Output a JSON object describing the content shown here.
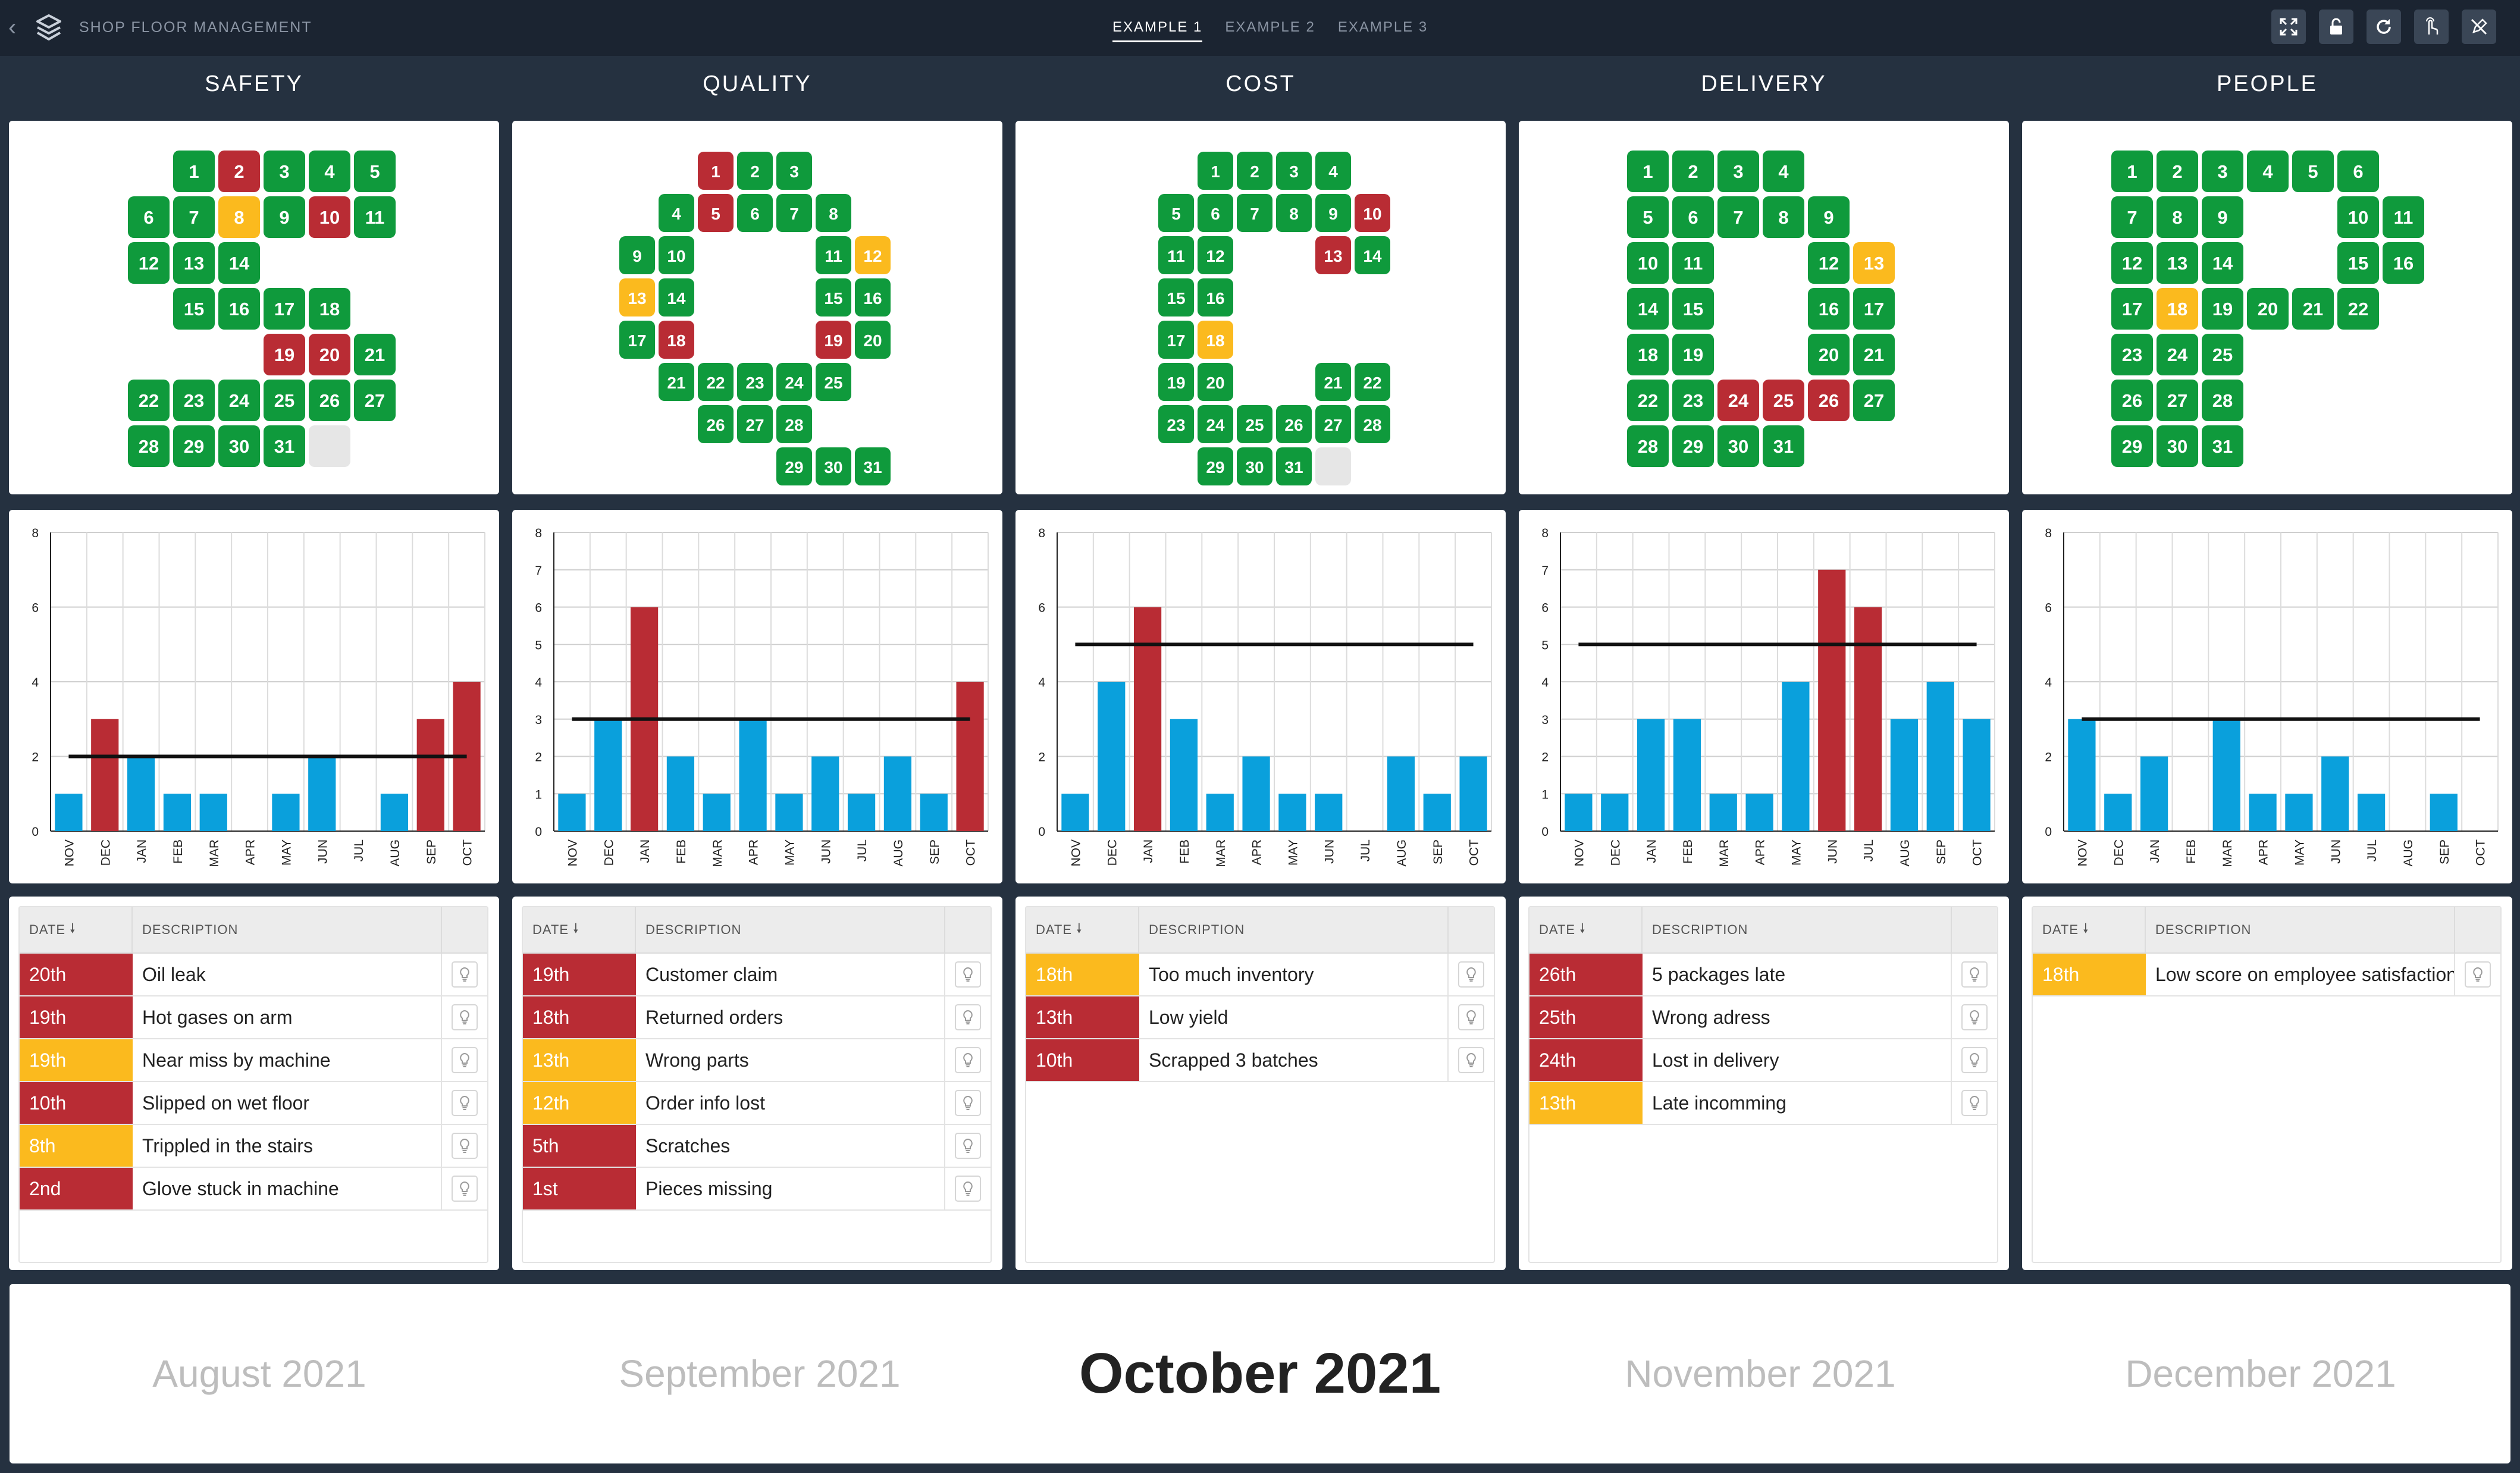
{
  "app": {
    "back_label": "‹",
    "title": "SHOP FLOOR MANAGEMENT",
    "logo": "layers-logo-icon"
  },
  "tabs": [
    {
      "label": "EXAMPLE 1",
      "active": true
    },
    {
      "label": "EXAMPLE 2",
      "active": false
    },
    {
      "label": "EXAMPLE 3",
      "active": false
    }
  ],
  "tools": [
    {
      "icon": "fullscreen-icon"
    },
    {
      "icon": "unlock-icon"
    },
    {
      "icon": "refresh-icon"
    },
    {
      "icon": "touch-icon"
    },
    {
      "icon": "edit-off-icon"
    }
  ],
  "colors": {
    "green": "#0f9a3c",
    "red": "#b92c34",
    "yellow": "#fbba1e",
    "grey": "#e6e6e6",
    "blue": "#0aa0dc",
    "target": "#111111"
  },
  "columns": [
    {
      "title": "SAFETY",
      "letter": "S",
      "days": {
        "2": "red",
        "8": "yellow",
        "10": "red",
        "19": "red",
        "20": "red"
      },
      "chart_data": {
        "type": "bar",
        "categories": [
          "NOV",
          "DEC",
          "JAN",
          "FEB",
          "MAR",
          "APR",
          "MAY",
          "JUN",
          "JUL",
          "AUG",
          "SEP",
          "OCT"
        ],
        "values": [
          1,
          3,
          2,
          1,
          1,
          0,
          1,
          2,
          0,
          1,
          3,
          4
        ],
        "status": [
          "blue",
          "red",
          "blue",
          "blue",
          "blue",
          "blue",
          "blue",
          "blue",
          "blue",
          "blue",
          "red",
          "red"
        ],
        "target": 2,
        "ylim": [
          0,
          8
        ],
        "yticks": [
          0,
          2,
          4,
          6,
          8
        ]
      },
      "table": {
        "header_date": "DATE",
        "header_desc": "DESCRIPTION",
        "rows": [
          {
            "date": "20th",
            "desc": "Oil leak",
            "status": "red"
          },
          {
            "date": "19th",
            "desc": "Hot gases on arm",
            "status": "red"
          },
          {
            "date": "19th",
            "desc": "Near miss by machine",
            "status": "yellow"
          },
          {
            "date": "10th",
            "desc": "Slipped on wet floor",
            "status": "red"
          },
          {
            "date": "8th",
            "desc": "Trippled in the stairs",
            "status": "yellow"
          },
          {
            "date": "2nd",
            "desc": "Glove stuck in machine",
            "status": "red"
          }
        ]
      }
    },
    {
      "title": "QUALITY",
      "letter": "Q",
      "days": {
        "1": "red",
        "5": "red",
        "12": "yellow",
        "13": "yellow",
        "18": "red",
        "19": "red"
      },
      "chart_data": {
        "type": "bar",
        "categories": [
          "NOV",
          "DEC",
          "JAN",
          "FEB",
          "MAR",
          "APR",
          "MAY",
          "JUN",
          "JUL",
          "AUG",
          "SEP",
          "OCT"
        ],
        "values": [
          1,
          3,
          6,
          2,
          1,
          3,
          1,
          2,
          1,
          2,
          1,
          4
        ],
        "status": [
          "blue",
          "blue",
          "red",
          "blue",
          "blue",
          "blue",
          "blue",
          "blue",
          "blue",
          "blue",
          "blue",
          "red"
        ],
        "target": 3,
        "ylim": [
          0,
          8
        ],
        "yticks": [
          0,
          1,
          2,
          3,
          4,
          5,
          6,
          7,
          8
        ]
      },
      "table": {
        "header_date": "DATE",
        "header_desc": "DESCRIPTION",
        "rows": [
          {
            "date": "19th",
            "desc": "Customer claim",
            "status": "red"
          },
          {
            "date": "18th",
            "desc": "Returned orders",
            "status": "red"
          },
          {
            "date": "13th",
            "desc": "Wrong parts",
            "status": "yellow"
          },
          {
            "date": "12th",
            "desc": "Order info lost",
            "status": "yellow"
          },
          {
            "date": "5th",
            "desc": "Scratches",
            "status": "red"
          },
          {
            "date": "1st",
            "desc": "Pieces missing",
            "status": "red"
          }
        ]
      }
    },
    {
      "title": "COST",
      "letter": "C",
      "days": {
        "10": "red",
        "13": "red",
        "18": "yellow"
      },
      "chart_data": {
        "type": "bar",
        "categories": [
          "NOV",
          "DEC",
          "JAN",
          "FEB",
          "MAR",
          "APR",
          "MAY",
          "JUN",
          "JUL",
          "AUG",
          "SEP",
          "OCT"
        ],
        "values": [
          1,
          4,
          6,
          3,
          1,
          2,
          1,
          1,
          0,
          2,
          1,
          2
        ],
        "status": [
          "blue",
          "blue",
          "red",
          "blue",
          "blue",
          "blue",
          "blue",
          "blue",
          "blue",
          "blue",
          "blue",
          "blue"
        ],
        "target": 5,
        "ylim": [
          0,
          8
        ],
        "yticks": [
          0,
          2,
          4,
          6,
          8
        ]
      },
      "table": {
        "header_date": "DATE",
        "header_desc": "DESCRIPTION",
        "rows": [
          {
            "date": "18th",
            "desc": "Too much inventory",
            "status": "yellow"
          },
          {
            "date": "13th",
            "desc": "Low yield",
            "status": "red"
          },
          {
            "date": "10th",
            "desc": "Scrapped 3 batches",
            "status": "red"
          }
        ]
      }
    },
    {
      "title": "DELIVERY",
      "letter": "D",
      "days": {
        "13": "yellow",
        "24": "red",
        "25": "red",
        "26": "red"
      },
      "chart_data": {
        "type": "bar",
        "categories": [
          "NOV",
          "DEC",
          "JAN",
          "FEB",
          "MAR",
          "APR",
          "MAY",
          "JUN",
          "JUL",
          "AUG",
          "SEP",
          "OCT"
        ],
        "values": [
          1,
          1,
          3,
          3,
          1,
          1,
          4,
          7,
          6,
          3,
          4,
          3
        ],
        "status": [
          "blue",
          "blue",
          "blue",
          "blue",
          "blue",
          "blue",
          "blue",
          "red",
          "red",
          "blue",
          "blue",
          "blue"
        ],
        "target": 5,
        "ylim": [
          0,
          8
        ],
        "yticks": [
          0,
          1,
          2,
          3,
          4,
          5,
          6,
          7,
          8
        ]
      },
      "table": {
        "header_date": "DATE",
        "header_desc": "DESCRIPTION",
        "rows": [
          {
            "date": "26th",
            "desc": "5 packages late",
            "status": "red"
          },
          {
            "date": "25th",
            "desc": "Wrong adress",
            "status": "red"
          },
          {
            "date": "24th",
            "desc": "Lost in delivery",
            "status": "red"
          },
          {
            "date": "13th",
            "desc": "Late incomming",
            "status": "yellow"
          }
        ]
      }
    },
    {
      "title": "PEOPLE",
      "letter": "P",
      "days": {
        "18": "yellow"
      },
      "chart_data": {
        "type": "bar",
        "categories": [
          "NOV",
          "DEC",
          "JAN",
          "FEB",
          "MAR",
          "APR",
          "MAY",
          "JUN",
          "JUL",
          "AUG",
          "SEP",
          "OCT"
        ],
        "values": [
          3,
          1,
          2,
          0,
          3,
          1,
          1,
          2,
          1,
          0,
          1,
          0
        ],
        "status": [
          "blue",
          "blue",
          "blue",
          "blue",
          "blue",
          "blue",
          "blue",
          "blue",
          "blue",
          "blue",
          "blue",
          "blue"
        ],
        "target": 3,
        "ylim": [
          0,
          8
        ],
        "yticks": [
          0,
          2,
          4,
          6,
          8
        ]
      },
      "table": {
        "header_date": "DATE",
        "header_desc": "DESCRIPTION",
        "rows": [
          {
            "date": "18th",
            "desc": "Low score on employee satisfaction",
            "status": "yellow"
          }
        ]
      }
    }
  ],
  "months": [
    {
      "label": "August 2021",
      "current": false
    },
    {
      "label": "September 2021",
      "current": false
    },
    {
      "label": "October 2021",
      "current": true
    },
    {
      "label": "November 2021",
      "current": false
    },
    {
      "label": "December 2021",
      "current": false
    }
  ]
}
